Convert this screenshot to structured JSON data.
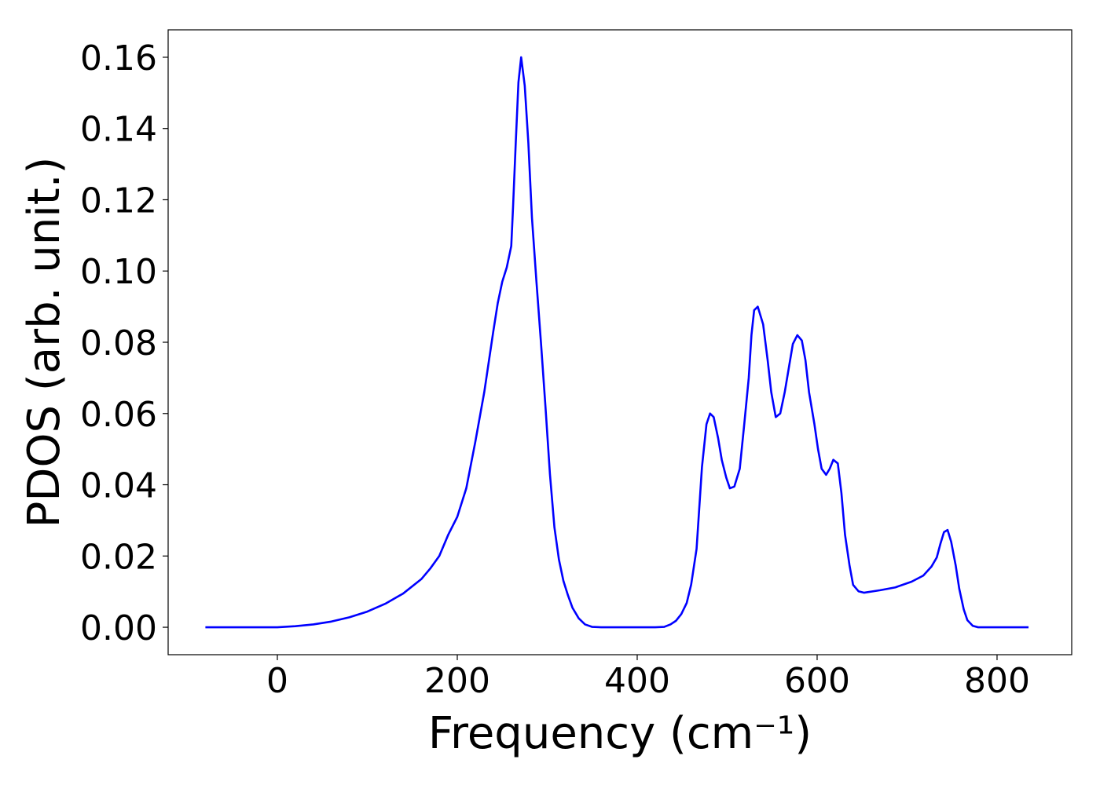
{
  "chart_data": {
    "type": "line",
    "xlabel": "Frequency (cm⁻¹)",
    "ylabel": "PDOS (arb. unit.)",
    "xlim": [
      -121.4,
      883
    ],
    "ylim": [
      -0.0077,
      0.1677
    ],
    "xticks": [
      0,
      200,
      400,
      600,
      800
    ],
    "yticks": [
      {
        "value": 0,
        "label": "0.00"
      },
      {
        "value": 0.02,
        "label": "0.02"
      },
      {
        "value": 0.04,
        "label": "0.04"
      },
      {
        "value": 0.06,
        "label": "0.06"
      },
      {
        "value": 0.08,
        "label": "0.08"
      },
      {
        "value": 0.1,
        "label": "0.10"
      },
      {
        "value": 0.12,
        "label": "0.12"
      },
      {
        "value": 0.14,
        "label": "0.14"
      },
      {
        "value": 0.16,
        "label": "0.16"
      }
    ],
    "grid": false,
    "series": [
      {
        "color": "#0000ff",
        "x": [
          -80,
          0,
          20,
          40,
          60,
          80,
          100,
          120,
          140,
          160,
          170,
          180,
          190,
          200,
          210,
          220,
          230,
          240,
          245,
          250,
          255,
          260,
          262,
          265,
          268,
          271,
          275,
          279,
          283,
          288,
          293,
          298,
          303,
          308,
          313,
          318,
          323,
          328,
          335,
          342,
          350,
          360,
          420,
          430,
          437,
          443,
          449,
          455,
          460,
          466,
          472,
          477,
          481,
          485,
          490,
          494,
          499,
          503,
          508,
          514,
          519,
          524,
          527,
          530,
          534,
          540,
          545,
          549,
          554,
          559,
          564,
          569,
          573,
          578,
          583,
          587,
          591,
          597,
          601,
          605,
          610,
          614,
          618,
          623,
          627,
          631,
          636,
          640,
          646,
          652,
          670,
          687,
          705,
          718,
          727,
          733,
          737,
          741,
          745,
          749,
          754,
          758,
          763,
          767,
          773,
          779,
          835
        ],
        "values": [
          0,
          0,
          0.0003,
          0.0008,
          0.0016,
          0.0028,
          0.0044,
          0.0066,
          0.0095,
          0.0135,
          0.0165,
          0.02,
          0.026,
          0.031,
          0.039,
          0.052,
          0.066,
          0.083,
          0.091,
          0.097,
          0.101,
          0.107,
          0.118,
          0.136,
          0.153,
          0.16,
          0.152,
          0.136,
          0.115,
          0.097,
          0.08,
          0.062,
          0.043,
          0.028,
          0.019,
          0.013,
          0.009,
          0.0055,
          0.0025,
          0.0008,
          0.0001,
          0,
          0,
          0.0001,
          0.0008,
          0.0018,
          0.0037,
          0.0068,
          0.012,
          0.022,
          0.045,
          0.057,
          0.06,
          0.059,
          0.053,
          0.047,
          0.042,
          0.039,
          0.0395,
          0.0445,
          0.057,
          0.07,
          0.082,
          0.089,
          0.09,
          0.085,
          0.075,
          0.066,
          0.059,
          0.06,
          0.066,
          0.0735,
          0.0795,
          0.082,
          0.0805,
          0.075,
          0.066,
          0.057,
          0.05,
          0.0445,
          0.0428,
          0.0445,
          0.047,
          0.046,
          0.0377,
          0.026,
          0.0174,
          0.0119,
          0.0101,
          0.0097,
          0.0104,
          0.0112,
          0.0128,
          0.0145,
          0.017,
          0.0196,
          0.0234,
          0.0267,
          0.0273,
          0.024,
          0.0174,
          0.0108,
          0.005,
          0.002,
          0.0004,
          0,
          0
        ]
      }
    ]
  }
}
